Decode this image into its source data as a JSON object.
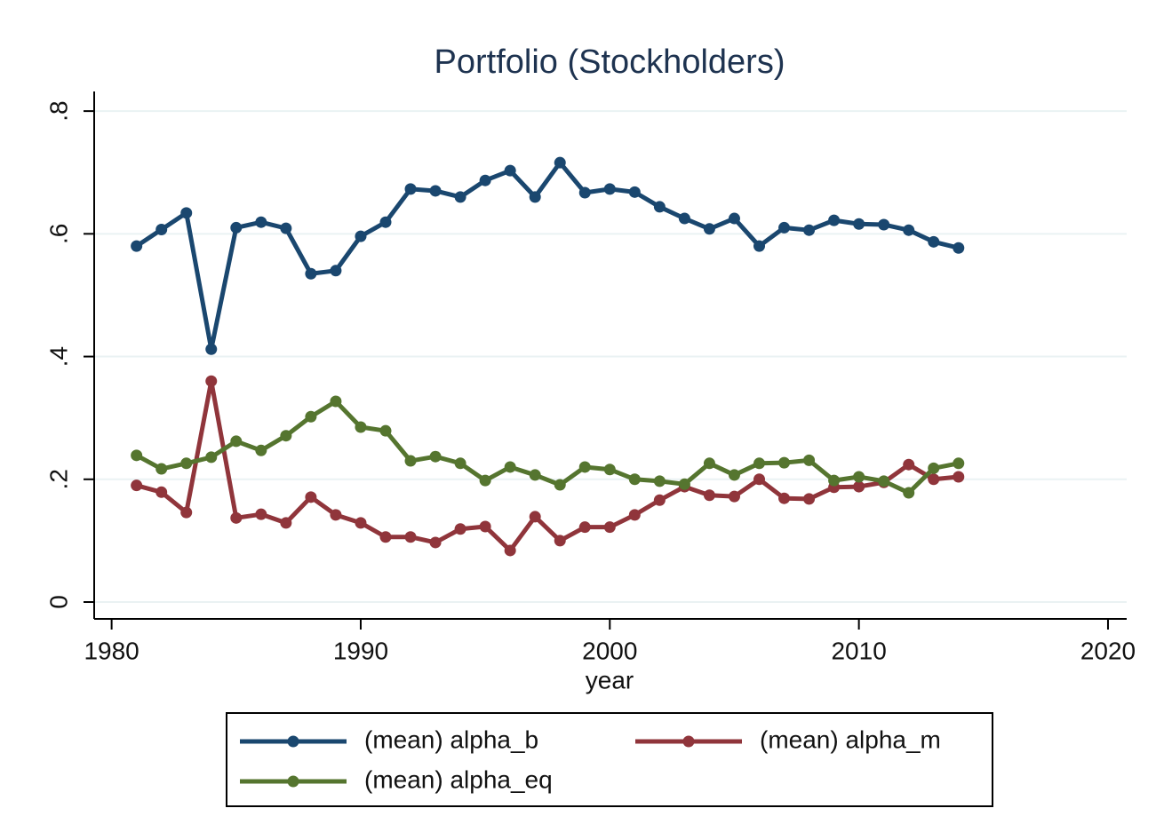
{
  "chart_data": {
    "type": "line",
    "title": "Portfolio (Stockholders)",
    "xlabel": "year",
    "x": [
      1981,
      1982,
      1983,
      1984,
      1985,
      1986,
      1987,
      1988,
      1989,
      1990,
      1991,
      1992,
      1993,
      1994,
      1995,
      1996,
      1997,
      1998,
      1999,
      2000,
      2001,
      2002,
      2003,
      2004,
      2005,
      2006,
      2007,
      2008,
      2009,
      2010,
      2011,
      2012,
      2013,
      2014
    ],
    "series": [
      {
        "name": "(mean) alpha_b",
        "color": "#1a476f",
        "values": [
          0.58,
          0.607,
          0.634,
          0.412,
          0.61,
          0.619,
          0.609,
          0.535,
          0.54,
          0.596,
          0.619,
          0.673,
          0.67,
          0.66,
          0.687,
          0.703,
          0.66,
          0.716,
          0.667,
          0.673,
          0.668,
          0.644,
          0.625,
          0.608,
          0.625,
          0.58,
          0.61,
          0.606,
          0.622,
          0.616,
          0.615,
          0.606,
          0.587,
          0.577
        ]
      },
      {
        "name": "(mean) alpha_m",
        "color": "#90353b",
        "values": [
          0.19,
          0.179,
          0.146,
          0.36,
          0.137,
          0.143,
          0.129,
          0.171,
          0.142,
          0.129,
          0.106,
          0.106,
          0.097,
          0.119,
          0.123,
          0.084,
          0.139,
          0.1,
          0.122,
          0.122,
          0.142,
          0.166,
          0.188,
          0.174,
          0.172,
          0.2,
          0.169,
          0.168,
          0.187,
          0.188,
          0.195,
          0.224,
          0.2,
          0.204
        ]
      },
      {
        "name": "(mean) alpha_eq",
        "color": "#55752f",
        "values": [
          0.239,
          0.217,
          0.226,
          0.236,
          0.262,
          0.247,
          0.271,
          0.302,
          0.327,
          0.285,
          0.279,
          0.23,
          0.237,
          0.226,
          0.198,
          0.22,
          0.207,
          0.191,
          0.22,
          0.216,
          0.2,
          0.197,
          0.192,
          0.226,
          0.207,
          0.226,
          0.227,
          0.231,
          0.198,
          0.204,
          0.197,
          0.178,
          0.218,
          0.226
        ]
      }
    ],
    "xlim": [
      1979.3,
      2020.75
    ],
    "xticks": [
      1980,
      1990,
      2000,
      2010,
      2020
    ],
    "ylim": [
      -0.0275,
      0.832
    ],
    "yticks": [
      {
        "value": 0,
        "label": "0"
      },
      {
        "value": 0.2,
        "label": ".2"
      },
      {
        "value": 0.4,
        "label": ".4"
      },
      {
        "value": 0.6,
        "label": ".6"
      },
      {
        "value": 0.8,
        "label": ".8"
      }
    ],
    "grid": true
  }
}
